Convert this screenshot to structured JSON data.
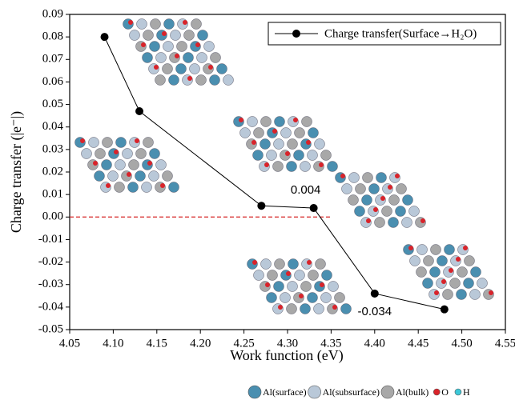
{
  "chart_data": {
    "type": "line",
    "x": [
      4.09,
      4.13,
      4.27,
      4.33,
      4.4,
      4.48
    ],
    "series": [
      {
        "name": "Charge transfer(Surface→H₂O)",
        "color": "#000000",
        "values": [
          0.08,
          0.047,
          0.005,
          0.004,
          -0.034,
          -0.041
        ],
        "value_labels": [
          null,
          null,
          null,
          "0.004",
          "-0.034",
          null
        ]
      }
    ],
    "xlabel": "Work function (eV)",
    "ylabel": "Charge transfer (|e⁻|)",
    "xlim": [
      4.05,
      4.55
    ],
    "xticks": [
      4.05,
      {
        "value": 4.1,
        "label": "4.10"
      },
      4.15,
      {
        "value": 4.2,
        "label": "4.20"
      },
      4.25,
      {
        "value": 4.3,
        "label": "4.30"
      },
      4.35,
      {
        "value": 4.4,
        "label": "4.40"
      },
      4.45,
      {
        "value": 4.5,
        "label": "4.50"
      },
      4.55
    ],
    "ylim": [
      -0.05,
      0.09
    ],
    "yticks": [
      0.09,
      0.08,
      0.07,
      0.06,
      0.05,
      0.04,
      0.03,
      0.02,
      0.01,
      {
        "value": 0,
        "label": "0.00"
      },
      -0.01,
      -0.02,
      -0.03,
      -0.04,
      -0.05
    ],
    "reference_line": {
      "y": 0,
      "x": [
        4.05,
        4.35
      ],
      "color": "#d62728"
    },
    "legend_position": "upper right",
    "atom_legend": [
      {
        "label": "Al(surface)",
        "color": "#4a8fb0"
      },
      {
        "label": "Al(subsurface)",
        "color": "#b9c8d8"
      },
      {
        "label": "Al(bulk)",
        "color": "#a8a8a8"
      },
      {
        "label": "O",
        "color": "#d9232a"
      },
      {
        "label": "H",
        "color": "#3cc8d8"
      }
    ]
  }
}
